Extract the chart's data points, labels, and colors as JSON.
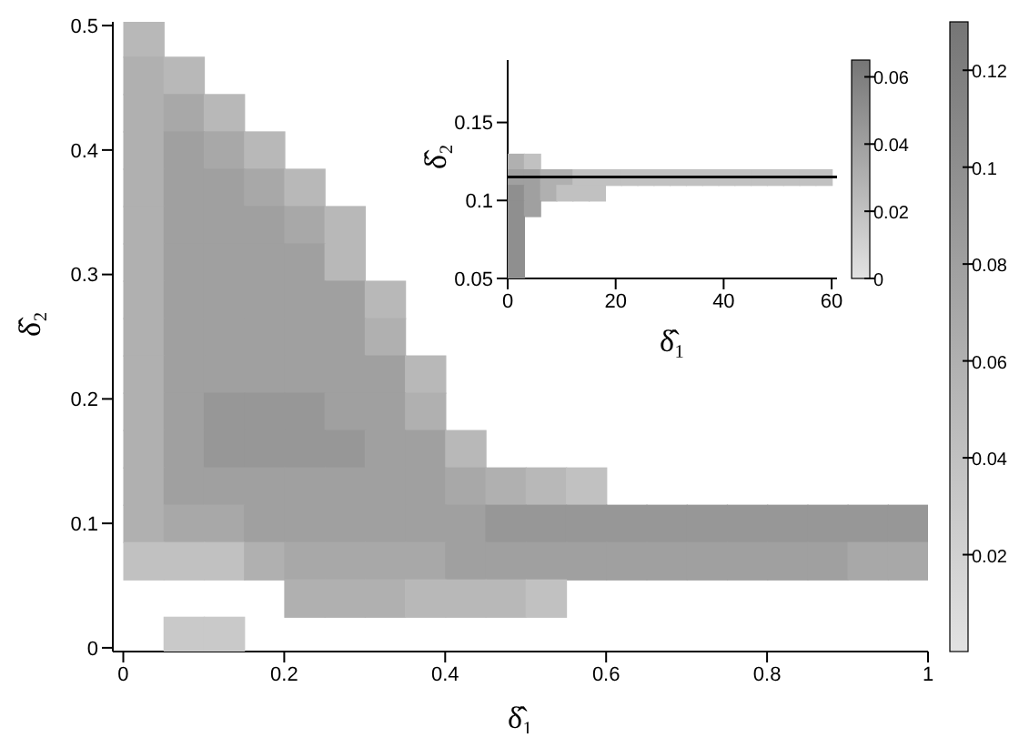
{
  "chart_data": [
    {
      "type": "heatmap",
      "xlabel": "δ̂₁",
      "ylabel": "δ̂₂",
      "xlim": [
        -0.013,
        1
      ],
      "ylim": [
        -0.003,
        0.503
      ],
      "xticks": [
        0,
        0.2,
        0.4,
        0.6,
        0.8,
        1
      ],
      "yticks": [
        0,
        0.1,
        0.2,
        0.3,
        0.4,
        0.5
      ],
      "clim": [
        0,
        0.13
      ],
      "cticks": [
        0.02,
        0.04,
        0.06,
        0.08,
        0.1,
        0.12
      ],
      "x": [
        0.025,
        0.075,
        0.125,
        0.175,
        0.225,
        0.275,
        0.325,
        0.375,
        0.425,
        0.475,
        0.525,
        0.575,
        0.625,
        0.675,
        0.725,
        0.775,
        0.825,
        0.875,
        0.925,
        0.975
      ],
      "y": [
        0.49,
        0.46,
        0.43,
        0.4,
        0.37,
        0.34,
        0.31,
        0.28,
        0.25,
        0.22,
        0.19,
        0.16,
        0.13,
        0.1,
        0.07,
        0.04,
        0.01
      ],
      "cells": [
        [
          0.05,
          null,
          null,
          null,
          null,
          null,
          null,
          null,
          null,
          null,
          null,
          null,
          null,
          null,
          null,
          null,
          null,
          null,
          null,
          null
        ],
        [
          0.06,
          0.05,
          null,
          null,
          null,
          null,
          null,
          null,
          null,
          null,
          null,
          null,
          null,
          null,
          null,
          null,
          null,
          null,
          null,
          null
        ],
        [
          0.06,
          0.07,
          0.05,
          null,
          null,
          null,
          null,
          null,
          null,
          null,
          null,
          null,
          null,
          null,
          null,
          null,
          null,
          null,
          null,
          null
        ],
        [
          0.06,
          0.08,
          0.07,
          0.05,
          null,
          null,
          null,
          null,
          null,
          null,
          null,
          null,
          null,
          null,
          null,
          null,
          null,
          null,
          null,
          null
        ],
        [
          0.06,
          0.08,
          0.08,
          0.07,
          0.05,
          null,
          null,
          null,
          null,
          null,
          null,
          null,
          null,
          null,
          null,
          null,
          null,
          null,
          null,
          null
        ],
        [
          0.06,
          0.08,
          0.08,
          0.08,
          0.07,
          0.05,
          null,
          null,
          null,
          null,
          null,
          null,
          null,
          null,
          null,
          null,
          null,
          null,
          null,
          null
        ],
        [
          0.06,
          0.08,
          0.08,
          0.08,
          0.08,
          0.05,
          null,
          null,
          null,
          null,
          null,
          null,
          null,
          null,
          null,
          null,
          null,
          null,
          null,
          null
        ],
        [
          0.06,
          0.08,
          0.08,
          0.08,
          0.08,
          0.08,
          0.05,
          null,
          null,
          null,
          null,
          null,
          null,
          null,
          null,
          null,
          null,
          null,
          null,
          null
        ],
        [
          0.06,
          0.08,
          0.08,
          0.08,
          0.08,
          0.08,
          0.06,
          null,
          null,
          null,
          null,
          null,
          null,
          null,
          null,
          null,
          null,
          null,
          null,
          null
        ],
        [
          0.06,
          0.08,
          0.08,
          0.08,
          0.08,
          0.08,
          0.08,
          0.05,
          null,
          null,
          null,
          null,
          null,
          null,
          null,
          null,
          null,
          null,
          null,
          null
        ],
        [
          0.06,
          0.08,
          0.09,
          0.09,
          0.09,
          0.08,
          0.08,
          0.06,
          null,
          null,
          null,
          null,
          null,
          null,
          null,
          null,
          null,
          null,
          null,
          null
        ],
        [
          0.06,
          0.08,
          0.09,
          0.09,
          0.09,
          0.09,
          0.08,
          0.08,
          0.05,
          null,
          null,
          null,
          null,
          null,
          null,
          null,
          null,
          null,
          null,
          null
        ],
        [
          0.06,
          0.08,
          0.08,
          0.08,
          0.08,
          0.08,
          0.08,
          0.08,
          0.07,
          0.06,
          0.05,
          0.04,
          null,
          null,
          null,
          null,
          null,
          null,
          null,
          null
        ],
        [
          0.06,
          0.07,
          0.07,
          0.08,
          0.08,
          0.08,
          0.08,
          0.08,
          0.08,
          0.09,
          0.09,
          0.09,
          0.09,
          0.09,
          0.09,
          0.09,
          0.09,
          0.09,
          0.09,
          0.09
        ],
        [
          0.04,
          0.04,
          0.04,
          0.06,
          0.07,
          0.07,
          0.07,
          0.07,
          0.08,
          0.08,
          0.08,
          0.08,
          0.08,
          0.08,
          0.08,
          0.08,
          0.08,
          0.08,
          0.07,
          0.07
        ],
        [
          null,
          null,
          null,
          null,
          0.06,
          0.06,
          0.06,
          0.05,
          0.05,
          0.05,
          0.04,
          null,
          null,
          null,
          null,
          null,
          null,
          null,
          null,
          null
        ],
        [
          null,
          0.03,
          0.03,
          null,
          null,
          null,
          null,
          null,
          null,
          null,
          null,
          null,
          null,
          null,
          null,
          null,
          null,
          null,
          null,
          null
        ]
      ]
    },
    {
      "type": "heatmap",
      "xlabel": "δ̂₁",
      "ylabel": "δ̂₂",
      "xlim": [
        0,
        61
      ],
      "ylim": [
        0.05,
        0.19
      ],
      "xticks": [
        0,
        20,
        40,
        60
      ],
      "yticks": [
        0.05,
        0.1,
        0.15
      ],
      "clim": [
        0,
        0.065
      ],
      "cticks": [
        0,
        0.02,
        0.04,
        0.06
      ],
      "x": [
        1.5,
        4.5,
        7.5,
        10.5,
        13.5,
        16.5,
        19.5,
        22.5,
        25.5,
        28.5,
        31.5,
        34.5,
        37.5,
        40.5,
        43.5,
        46.5,
        49.5,
        52.5,
        55.5,
        58.5
      ],
      "y": [
        0.125,
        0.115,
        0.105,
        0.095,
        0.085,
        0.075,
        0.065,
        0.055
      ],
      "cells": [
        [
          0.03,
          0.02,
          null,
          null,
          null,
          null,
          null,
          null,
          null,
          null,
          null,
          null,
          null,
          null,
          null,
          null,
          null,
          null,
          null,
          null
        ],
        [
          0.04,
          0.04,
          0.03,
          0.03,
          0.02,
          0.02,
          0.02,
          0.02,
          0.02,
          0.02,
          0.02,
          0.02,
          0.02,
          0.02,
          0.02,
          0.02,
          0.02,
          0.02,
          0.02,
          0.02
        ],
        [
          0.05,
          0.04,
          0.03,
          0.02,
          0.02,
          0.02,
          null,
          null,
          null,
          null,
          null,
          null,
          null,
          null,
          null,
          null,
          null,
          null,
          null,
          null
        ],
        [
          0.05,
          0.04,
          null,
          null,
          null,
          null,
          null,
          null,
          null,
          null,
          null,
          null,
          null,
          null,
          null,
          null,
          null,
          null,
          null,
          null
        ],
        [
          0.05,
          null,
          null,
          null,
          null,
          null,
          null,
          null,
          null,
          null,
          null,
          null,
          null,
          null,
          null,
          null,
          null,
          null,
          null,
          null
        ],
        [
          0.05,
          null,
          null,
          null,
          null,
          null,
          null,
          null,
          null,
          null,
          null,
          null,
          null,
          null,
          null,
          null,
          null,
          null,
          null,
          null
        ],
        [
          0.05,
          null,
          null,
          null,
          null,
          null,
          null,
          null,
          null,
          null,
          null,
          null,
          null,
          null,
          null,
          null,
          null,
          null,
          null,
          null
        ],
        [
          0.05,
          null,
          null,
          null,
          null,
          null,
          null,
          null,
          null,
          null,
          null,
          null,
          null,
          null,
          null,
          null,
          null,
          null,
          null,
          null
        ]
      ],
      "ref_lines": [
        {
          "axis": "y",
          "value": 0.115,
          "color": "#000000"
        }
      ]
    }
  ]
}
